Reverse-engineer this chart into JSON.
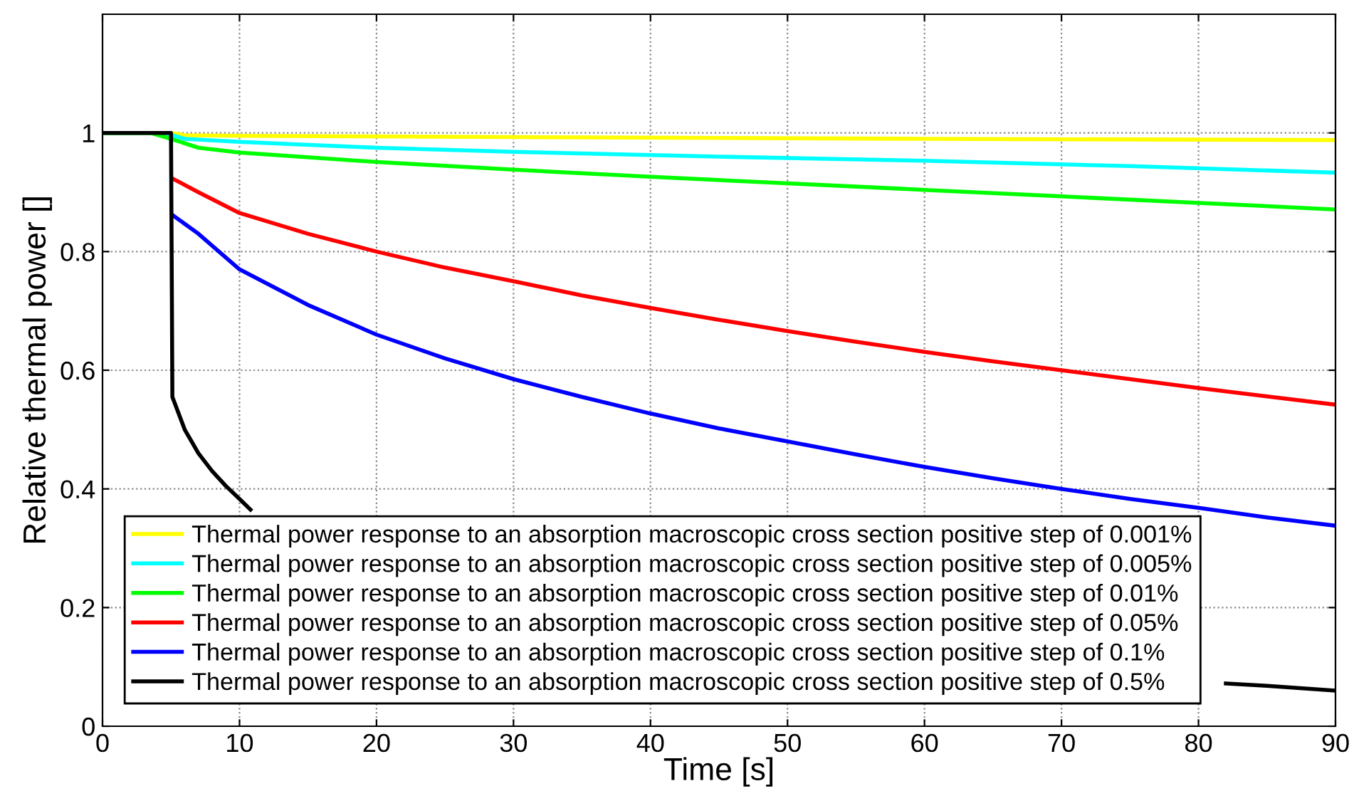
{
  "chart_data": {
    "type": "line",
    "xlabel": "Time [s]",
    "ylabel": "Relative thermal power []",
    "xlim": [
      0,
      90
    ],
    "ylim": [
      0,
      1.2
    ],
    "xticks": [
      0,
      10,
      20,
      30,
      40,
      50,
      60,
      70,
      80,
      90
    ],
    "yticks": [
      0,
      0.2,
      0.4,
      0.6,
      0.8,
      1
    ],
    "grid": true,
    "legend": "bottom left",
    "line_style": "solid",
    "marker": "none",
    "series": [
      {
        "name": "Thermal power response to an absorption macroscopic cross section positive step of 0.001%",
        "color": "#ffff00",
        "x": [
          0,
          5,
          6,
          10,
          30,
          60,
          90
        ],
        "values": [
          1,
          1,
          0.996,
          0.995,
          0.993,
          0.99,
          0.988
        ]
      },
      {
        "name": "Thermal power response to an absorption macroscopic cross section positive step of 0.005%",
        "color": "#00ffff",
        "x": [
          0,
          4.5,
          6,
          10,
          20,
          30,
          45,
          60,
          75,
          90
        ],
        "values": [
          1,
          1,
          0.99,
          0.985,
          0.975,
          0.968,
          0.96,
          0.953,
          0.944,
          0.933
        ]
      },
      {
        "name": "Thermal power response to an absorption macroscopic cross section positive step of 0.01%",
        "color": "#00ff00",
        "x": [
          0,
          3.5,
          5,
          7,
          10,
          20,
          30,
          40,
          50,
          60,
          70,
          80,
          90
        ],
        "values": [
          1,
          1,
          0.99,
          0.975,
          0.967,
          0.951,
          0.938,
          0.926,
          0.915,
          0.904,
          0.893,
          0.882,
          0.871
        ]
      },
      {
        "name": "Thermal power response to an absorption macroscopic cross section positive step of 0.05%",
        "color": "#ff0000",
        "x": [
          5.2,
          7,
          10,
          15,
          20,
          25,
          30,
          35,
          40,
          45,
          50,
          55,
          60,
          65,
          70,
          75,
          80,
          85,
          90
        ],
        "values": [
          0.922,
          0.9,
          0.865,
          0.83,
          0.8,
          0.773,
          0.75,
          0.726,
          0.705,
          0.685,
          0.666,
          0.648,
          0.631,
          0.615,
          0.6,
          0.585,
          0.57,
          0.556,
          0.542
        ]
      },
      {
        "name": "Thermal power response to an absorption macroscopic cross section positive step of 0.1%",
        "color": "#0000ff",
        "x": [
          5.2,
          7,
          10,
          15,
          20,
          25,
          30,
          35,
          40,
          45,
          50,
          55,
          60,
          65,
          70,
          75,
          80,
          85,
          90
        ],
        "values": [
          0.86,
          0.83,
          0.77,
          0.71,
          0.66,
          0.62,
          0.585,
          0.555,
          0.527,
          0.502,
          0.48,
          0.458,
          0.437,
          0.418,
          0.4,
          0.383,
          0.368,
          0.352,
          0.338
        ]
      },
      {
        "name": "Thermal power response to an absorption macroscopic cross section positive step of 0.5%",
        "color": "#000000",
        "x": [
          0,
          5,
          5.1,
          6,
          7,
          8,
          9,
          10,
          10.8,
          11,
          82,
          85,
          90
        ],
        "values": [
          1,
          1,
          0.555,
          0.5,
          0.46,
          0.43,
          0.405,
          0.383,
          0.365,
          null,
          0.072,
          0.068,
          0.06
        ]
      }
    ]
  }
}
